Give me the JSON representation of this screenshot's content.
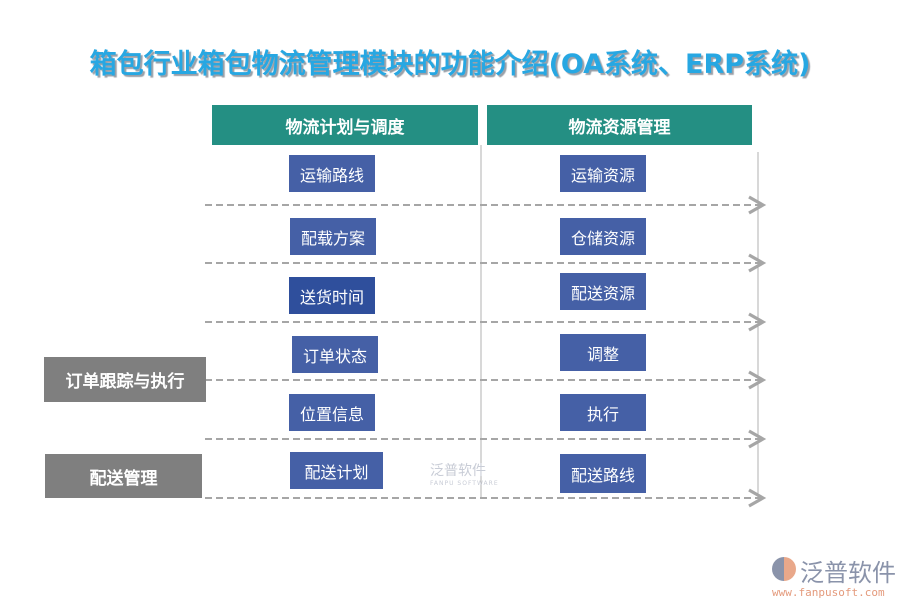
{
  "title": "箱包行业箱包物流管理模块的功能介绍(OA系统、ERP系统)",
  "headers": [
    "物流计划与调度",
    "物流资源管理"
  ],
  "left_items": [
    "运输路线",
    "配载方案",
    "送货时间",
    "订单状态",
    "位置信息",
    "配送计划"
  ],
  "right_items": [
    "运输资源",
    "仓储资源",
    "配送资源",
    "调整",
    "执行",
    "配送路线"
  ],
  "side_labels": [
    "订单跟踪与执行",
    "配送管理"
  ],
  "colors": {
    "title": "#27a7e2",
    "header": "#248f83",
    "box": "#4560a6",
    "side": "#7f7f7f",
    "arrow": "#a6a6a6"
  },
  "watermark": {
    "name": "泛普软件",
    "sub": "FANPU SOFTWARE"
  },
  "logo": {
    "name": "泛普软件",
    "url": "www.fanpusoft.com"
  }
}
